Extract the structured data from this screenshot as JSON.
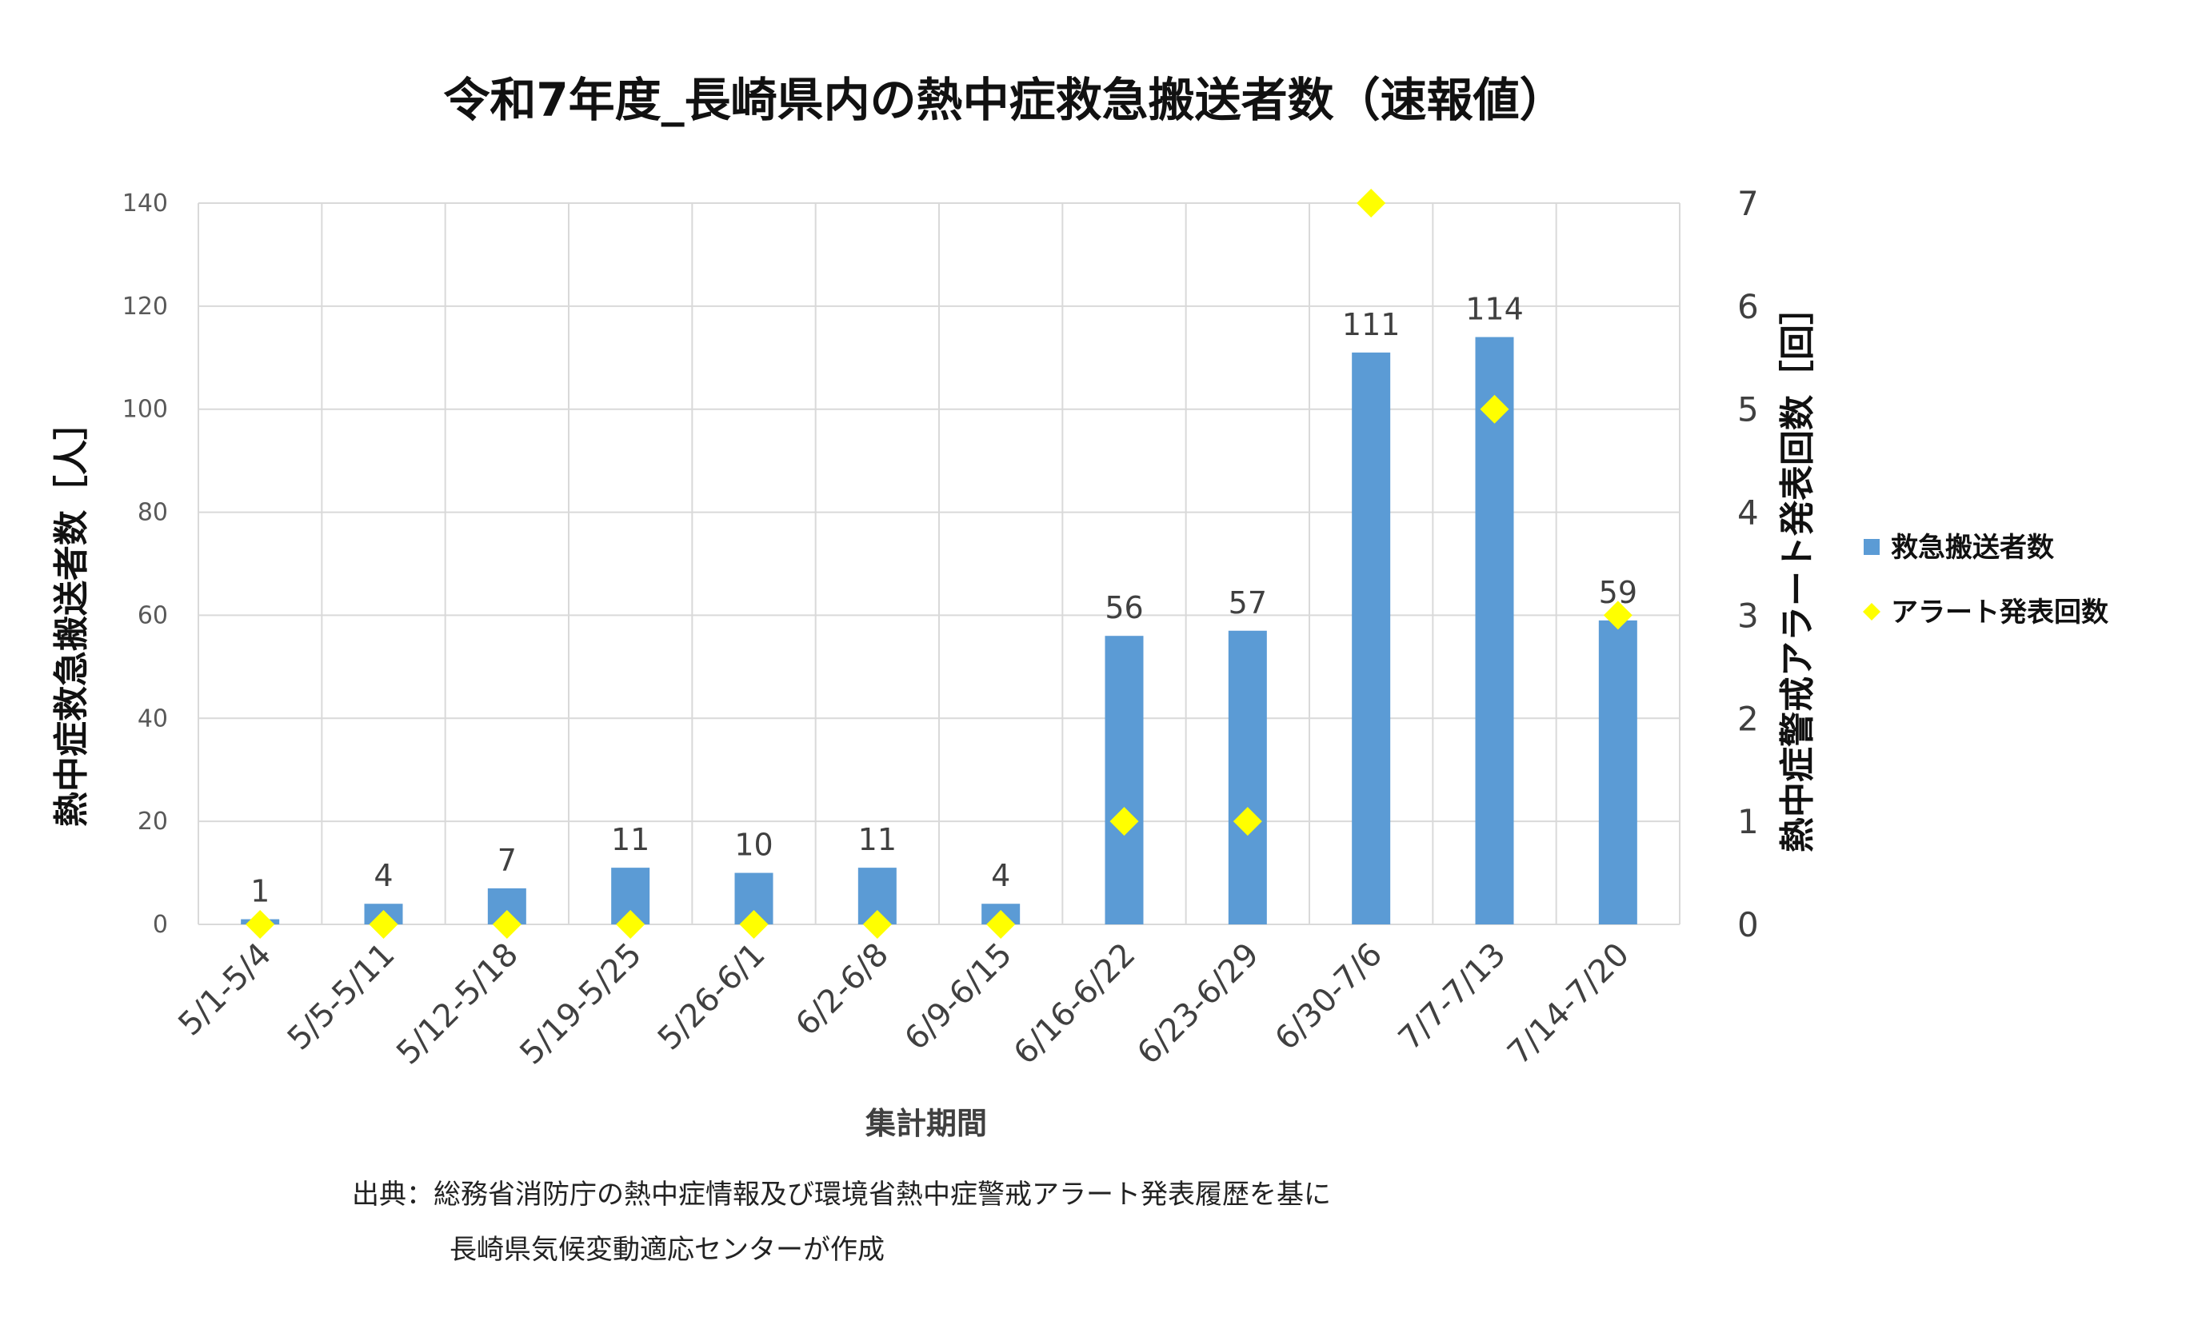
{
  "chart_data": {
    "type": "bar",
    "title": "令和7年度_長崎県内の熱中症救急搬送者数（速報値）",
    "xlabel": "集計期間",
    "ylabel": "熱中症救急搬送者数［人］",
    "y2label": "熱中症警戒アラート発表回数［回］",
    "categories": [
      "5/1-5/4",
      "5/5-5/11",
      "5/12-5/18",
      "5/19-5/25",
      "5/26-6/1",
      "6/2-6/8",
      "6/9-6/15",
      "6/16-6/22",
      "6/23-6/29",
      "6/30-7/6",
      "7/7-7/13",
      "7/14-7/20"
    ],
    "ylim": [
      0,
      140
    ],
    "yticks": [
      "0",
      "20",
      "40",
      "60",
      "80",
      "100",
      "120",
      "140"
    ],
    "y2lim": [
      0,
      7
    ],
    "y2ticks": [
      "0",
      "1",
      "2",
      "3",
      "4",
      "5",
      "6",
      "7"
    ],
    "grid": true,
    "legend_position": "right",
    "series": [
      {
        "name": "救急搬送者数",
        "type": "bar",
        "axis": "left",
        "color": "#5B9BD5",
        "values": [
          1,
          4,
          7,
          11,
          10,
          11,
          4,
          56,
          57,
          111,
          114,
          59
        ],
        "data_labels": [
          "1",
          "4",
          "7",
          "11",
          "10",
          "11",
          "4",
          "56",
          "57",
          "111",
          "114",
          "59"
        ]
      },
      {
        "name": "アラート発表回数",
        "type": "scatter",
        "marker": "diamond",
        "axis": "right",
        "color": "#FFFF00",
        "values": [
          0,
          0,
          0,
          0,
          0,
          0,
          0,
          1,
          1,
          7,
          5,
          3
        ]
      }
    ],
    "source_lines": [
      "出典：総務省消防庁の熱中症情報及び環境省熱中症警戒アラート発表履歴を基に",
      "長崎県気候変動適応センターが作成"
    ]
  }
}
